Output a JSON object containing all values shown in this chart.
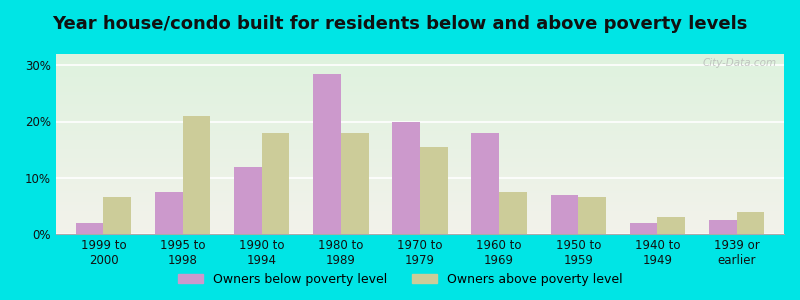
{
  "title": "Year house/condo built for residents below and above poverty levels",
  "categories": [
    "1999 to\n2000",
    "1995 to\n1998",
    "1990 to\n1994",
    "1980 to\n1989",
    "1970 to\n1979",
    "1960 to\n1969",
    "1950 to\n1959",
    "1940 to\n1949",
    "1939 or\nearlier"
  ],
  "below_poverty": [
    2.0,
    7.5,
    12.0,
    28.5,
    20.0,
    18.0,
    7.0,
    2.0,
    2.5
  ],
  "above_poverty": [
    6.5,
    21.0,
    18.0,
    18.0,
    15.5,
    7.5,
    6.5,
    3.0,
    4.0
  ],
  "below_color": "#cc99cc",
  "above_color": "#cccc99",
  "background_outer": "#00e5e5",
  "background_inner_top": "#ddf0dd",
  "background_inner_bottom": "#f0f0e8",
  "yticks": [
    0,
    10,
    20,
    30
  ],
  "ylim": [
    0,
    32
  ],
  "title_fontsize": 13,
  "tick_fontsize": 8.5,
  "legend_fontsize": 9,
  "bar_width": 0.35,
  "watermark": "City-Data.com"
}
